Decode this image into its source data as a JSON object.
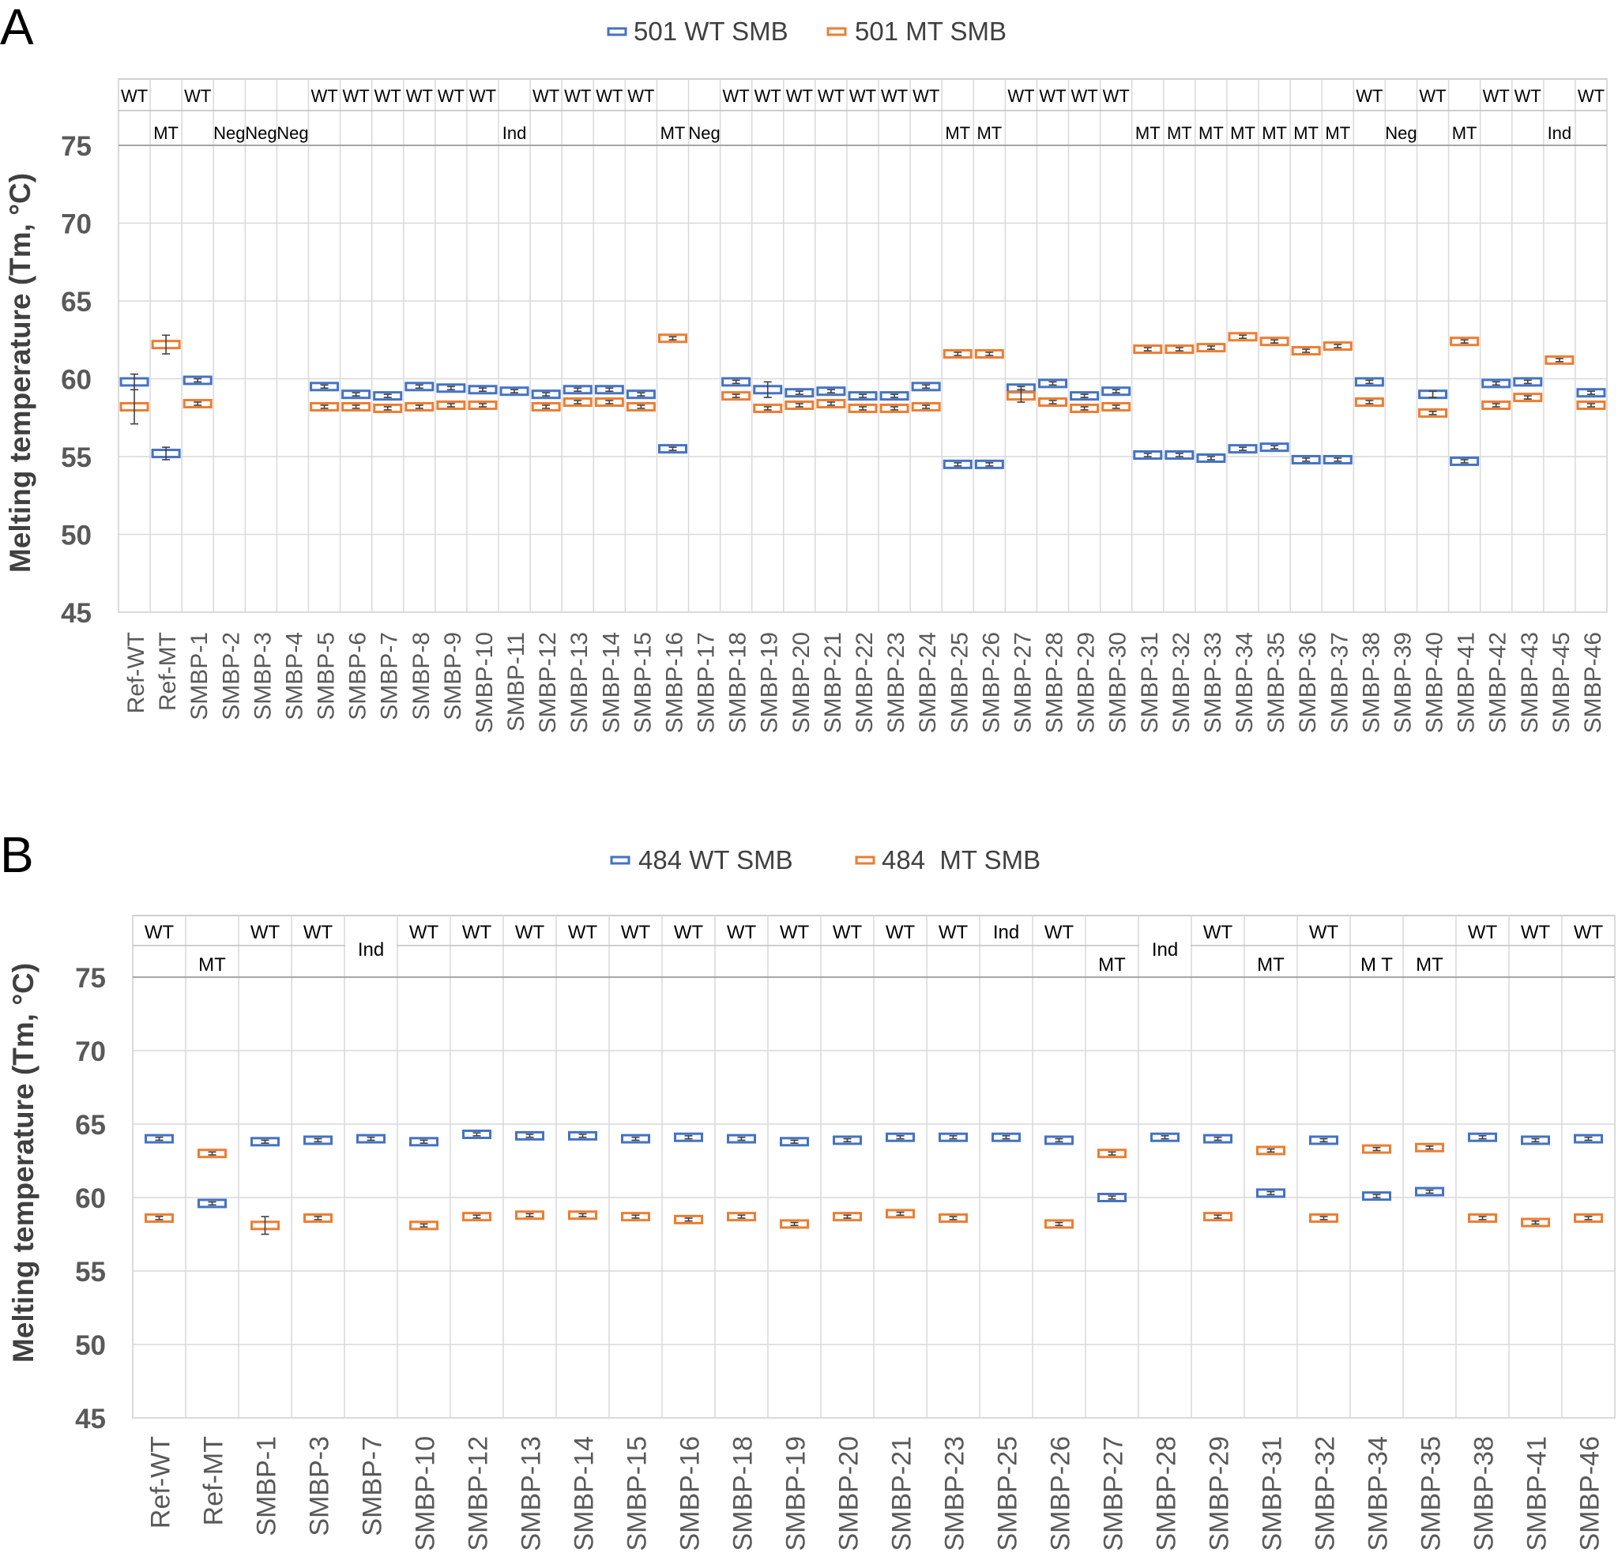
{
  "chart_data": [
    {
      "panel_label": "A",
      "type": "scatter",
      "marker": "horizontal-box-with-error-bars",
      "legend": [
        {
          "name": "501 WT SMB",
          "color": "#4472c4"
        },
        {
          "name": "501 MT SMB",
          "color": "#ed7d31"
        }
      ],
      "ylabel": "Melting temperature (Tm, °C)",
      "ylim": [
        45,
        75
      ],
      "yticks": [
        45,
        50,
        55,
        60,
        65,
        70,
        75
      ],
      "grid": true,
      "categories": [
        "Ref-WT",
        "Ref-MT",
        "SMBP-1",
        "SMBP-2",
        "SMBP-3",
        "SMBP-4",
        "SMBP-5",
        "SMBP-6",
        "SMBP-7",
        "SMBP-8",
        "SMBP-9",
        "SMBP-10",
        "SMBP-11",
        "SMBP-12",
        "SMBP-13",
        "SMBP-14",
        "SMBP-15",
        "SMBP-16",
        "SMBP-17",
        "SMBP-18",
        "SMBP-19",
        "SMBP-20",
        "SMBP-21",
        "SMBP-22",
        "SMBP-23",
        "SMBP-24",
        "SMBP-25",
        "SMBP-26",
        "SMBP-27",
        "SMBP-28",
        "SMBP-29",
        "SMBP-30",
        "SMBP-31",
        "SMBP-32",
        "SMBP-33",
        "SMBP-34",
        "SMBP-35",
        "SMBP-36",
        "SMBP-37",
        "SMBP-38",
        "SMBP-39",
        "SMBP-40",
        "SMBP-41",
        "SMBP-42",
        "SMBP-43",
        "SMBP-45",
        "SMBP-46"
      ],
      "calls_top": [
        "WT",
        "",
        "WT",
        "",
        "",
        "",
        "WT",
        "WT",
        "WT",
        "WT",
        "WT",
        "WT",
        "",
        "WT",
        "WT",
        "WT",
        "WT",
        "",
        "",
        "WT",
        "WT",
        "WT",
        "WT",
        "WT",
        "WT",
        "WT",
        "",
        "",
        "WT",
        "WT",
        "WT",
        "WT",
        "",
        "",
        "",
        "",
        "",
        "",
        "",
        "WT",
        "",
        "WT",
        "",
        "WT",
        "WT",
        "",
        "WT"
      ],
      "calls_bottom": [
        "",
        "MT",
        "",
        "Neg",
        "Neg",
        "Neg",
        "",
        "",
        "",
        "",
        "",
        "",
        "Ind",
        "",
        "",
        "",
        "",
        "MT",
        "Neg",
        "",
        "",
        "",
        "",
        "",
        "",
        "",
        "MT",
        "MT",
        "",
        "",
        "",
        "",
        "MT",
        "MT",
        "MT",
        "MT",
        "MT",
        "MT",
        "MT",
        "",
        "Neg",
        "",
        "MT",
        "",
        "",
        "Ind",
        ""
      ],
      "series": [
        {
          "name": "501 WT SMB",
          "values": [
            59.8,
            55.2,
            59.9,
            null,
            null,
            null,
            59.5,
            59.0,
            58.9,
            59.5,
            59.4,
            59.3,
            59.2,
            59.0,
            59.3,
            59.3,
            59.0,
            55.5,
            null,
            59.8,
            59.3,
            59.1,
            59.2,
            58.9,
            58.9,
            59.5,
            54.5,
            54.5,
            59.4,
            59.7,
            58.9,
            59.2,
            55.1,
            55.1,
            54.9,
            55.5,
            55.6,
            54.8,
            54.8,
            59.8,
            null,
            59.0,
            54.7,
            59.7,
            59.8,
            null,
            59.1
          ],
          "errors": [
            0.5,
            0.4,
            0.1,
            null,
            null,
            null,
            0.1,
            0.1,
            0.1,
            0.1,
            0.1,
            0.1,
            0.1,
            0.1,
            0.1,
            0.1,
            0.1,
            0.1,
            null,
            0.1,
            0.5,
            0.1,
            0.1,
            0.1,
            0.1,
            0.1,
            0.1,
            0.1,
            0.1,
            0.1,
            0.1,
            0.1,
            0.1,
            0.1,
            0.1,
            0.1,
            0.1,
            0.1,
            0.1,
            0.1,
            null,
            0.2,
            0.1,
            0.1,
            0.1,
            null,
            0.1
          ]
        },
        {
          "name": "501 MT SMB",
          "values": [
            58.2,
            62.2,
            58.4,
            null,
            null,
            null,
            58.2,
            58.2,
            58.1,
            58.2,
            58.3,
            58.3,
            null,
            58.2,
            58.5,
            58.5,
            58.2,
            62.6,
            null,
            58.9,
            58.1,
            58.3,
            58.4,
            58.1,
            58.1,
            58.2,
            61.6,
            61.6,
            58.9,
            58.5,
            58.1,
            58.2,
            61.9,
            61.9,
            62.0,
            62.7,
            62.4,
            61.8,
            62.1,
            58.5,
            null,
            57.8,
            62.4,
            58.3,
            58.8,
            61.2,
            58.3
          ],
          "errors": [
            1.1,
            0.6,
            0.1,
            null,
            null,
            null,
            0.1,
            0.1,
            0.1,
            0.1,
            0.1,
            0.1,
            null,
            0.1,
            0.1,
            0.1,
            0.1,
            0.1,
            null,
            0.1,
            0.1,
            0.1,
            0.1,
            0.1,
            0.1,
            0.1,
            0.1,
            0.1,
            0.4,
            0.1,
            0.1,
            0.1,
            0.1,
            0.1,
            0.1,
            0.1,
            0.1,
            0.1,
            0.1,
            0.1,
            null,
            0.1,
            0.1,
            0.1,
            0.1,
            0.1,
            0.1
          ]
        }
      ]
    },
    {
      "panel_label": "B",
      "type": "scatter",
      "marker": "horizontal-box-with-error-bars",
      "legend": [
        {
          "name": "484 WT SMB",
          "color": "#4472c4"
        },
        {
          "name": "484  MT SMB",
          "color": "#ed7d31"
        }
      ],
      "ylabel": "Melting temperature (Tm, °C)",
      "ylim": [
        45,
        75
      ],
      "yticks": [
        45,
        50,
        55,
        60,
        65,
        70,
        75
      ],
      "grid": true,
      "categories": [
        "Ref-WT",
        "Ref-MT",
        "SMBP-1",
        "SMBP-3",
        "SMBP-7",
        "SMBP-10",
        "SMBP-12",
        "SMBP-13",
        "SMBP-14",
        "SMBP-15",
        "SMBP-16",
        "SMBP-18",
        "SMBP-19",
        "SMBP-20",
        "SMBP-21",
        "SMBP-23",
        "SMBP-25",
        "SMBP-26",
        "SMBP-27",
        "SMBP-28",
        "SMBP-29",
        "SMBP-31",
        "SMBP-32",
        "SMBP-34",
        "SMBP-35",
        "SMBP-38",
        "SMBP-41",
        "SMBP-46"
      ],
      "calls_top": [
        "WT",
        "",
        "WT",
        "WT",
        "",
        "WT",
        "WT",
        "WT",
        "WT",
        "WT",
        "WT",
        "WT",
        "WT",
        "WT",
        "WT",
        "WT",
        "Ind",
        "WT",
        "",
        "",
        "WT",
        "",
        "WT",
        "",
        "",
        "WT",
        "WT",
        "WT"
      ],
      "calls_bottom": [
        "",
        "MT",
        "",
        "",
        "",
        "",
        "",
        "",
        "",
        "",
        "",
        "",
        "",
        "",
        "",
        "",
        "",
        "",
        "MT",
        "",
        "",
        "MT",
        "",
        "M T",
        "MT",
        "",
        "",
        ""
      ],
      "calls_merged": [
        "",
        "",
        "",
        "",
        "Ind",
        "",
        "",
        "",
        "",
        "",
        "",
        "",
        "",
        "",
        "",
        "",
        "",
        "",
        "",
        "Ind",
        "",
        "",
        "",
        "",
        "",
        "",
        "",
        ""
      ],
      "series": [
        {
          "name": "484 WT SMB",
          "values": [
            64.0,
            59.6,
            63.8,
            63.9,
            64.0,
            63.8,
            64.3,
            64.2,
            64.2,
            64.0,
            64.1,
            64.0,
            63.8,
            63.9,
            64.1,
            64.1,
            64.1,
            63.9,
            60.0,
            64.1,
            64.0,
            60.3,
            63.9,
            60.1,
            60.4,
            64.1,
            63.9,
            64.0
          ],
          "errors": [
            0.1,
            0.1,
            0.1,
            0.1,
            0.1,
            0.1,
            0.1,
            0.1,
            0.1,
            0.1,
            0.1,
            0.1,
            0.1,
            0.1,
            0.1,
            0.1,
            0.1,
            0.1,
            0.1,
            0.1,
            0.1,
            0.1,
            0.1,
            0.1,
            0.1,
            0.1,
            0.1,
            0.1
          ]
        },
        {
          "name": "484  MT SMB",
          "values": [
            58.6,
            63.0,
            58.1,
            58.6,
            null,
            58.1,
            58.7,
            58.8,
            58.8,
            58.7,
            58.5,
            58.7,
            58.2,
            58.7,
            58.9,
            58.6,
            null,
            58.2,
            63.0,
            null,
            58.7,
            63.2,
            58.6,
            63.3,
            63.4,
            58.6,
            58.3,
            58.6
          ],
          "errors": [
            0.1,
            0.1,
            0.6,
            0.1,
            null,
            0.1,
            0.1,
            0.1,
            0.1,
            0.1,
            0.1,
            0.1,
            0.1,
            0.1,
            0.1,
            0.1,
            null,
            0.1,
            0.1,
            null,
            0.1,
            0.1,
            0.1,
            0.1,
            0.1,
            0.1,
            0.1,
            0.1
          ]
        }
      ]
    }
  ]
}
